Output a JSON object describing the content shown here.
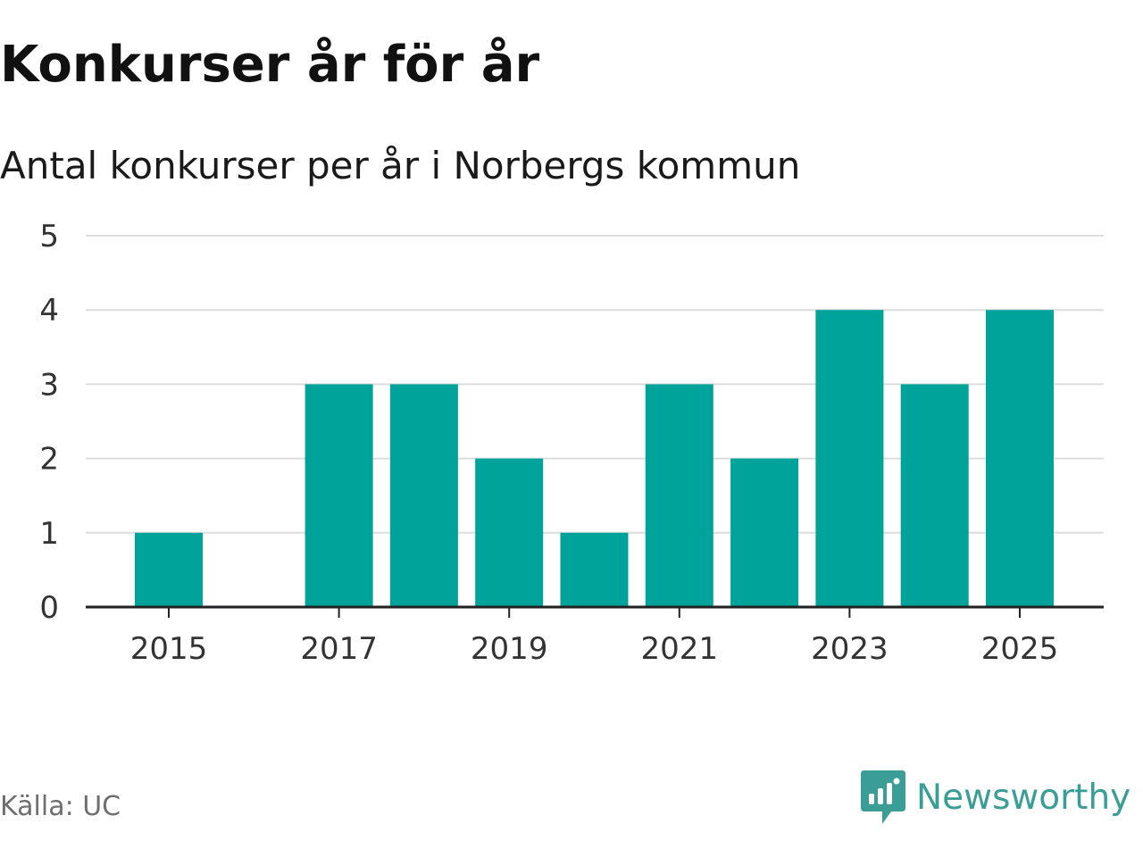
{
  "title": "Konkurser år för år",
  "subtitle": "Antal konkurser per år i Norbergs kommun",
  "source": "Källa: UC",
  "brand": {
    "name": "Newsworthy",
    "icon": "newsworthy-logo-icon",
    "color": "#3a9e96"
  },
  "colors": {
    "bar": "#00a39a",
    "grid": "#dddddd",
    "axis": "#222222",
    "text": "#333333"
  },
  "chart_data": {
    "type": "bar",
    "categories": [
      "2015",
      "2016",
      "2017",
      "2018",
      "2019",
      "2020",
      "2021",
      "2022",
      "2023",
      "2024",
      "2025"
    ],
    "values": [
      1,
      0,
      3,
      3,
      2,
      1,
      3,
      2,
      4,
      3,
      4
    ],
    "x_tick_labels": [
      "2015",
      "2017",
      "2019",
      "2021",
      "2023",
      "2025"
    ],
    "y_tick_labels": [
      "0",
      "1",
      "2",
      "3",
      "4",
      "5"
    ],
    "xlabel": "",
    "ylabel": "",
    "ylim": [
      0,
      5
    ],
    "grid": true,
    "legend": false
  }
}
